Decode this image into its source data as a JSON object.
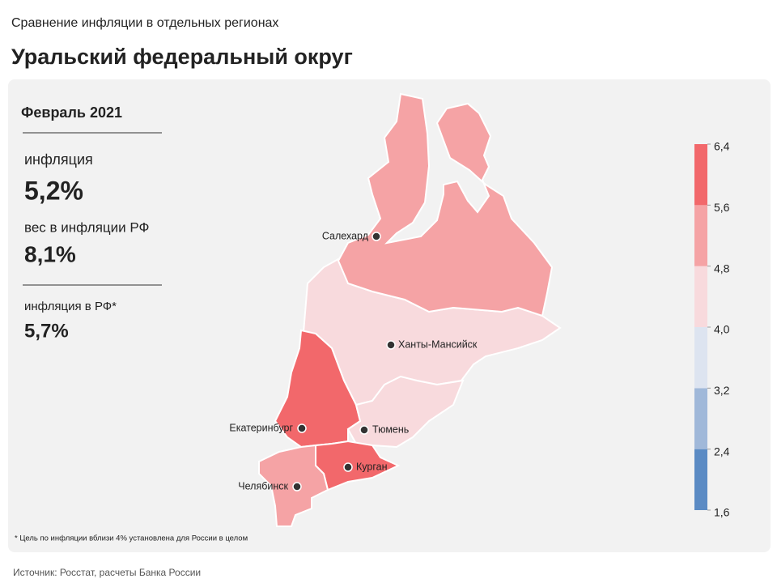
{
  "header": {
    "subtitle": "Сравнение инфляции  в отдельных регионах",
    "title": "Уральский федеральный округ"
  },
  "panel": {
    "period": "Февраль 2021",
    "stats": [
      {
        "label": "инфляция",
        "value": "5,2%"
      },
      {
        "label": "вес в инфляции РФ",
        "value": "8,1%"
      },
      {
        "label": "инфляция  в РФ*",
        "value": "5,7%"
      }
    ]
  },
  "cities": [
    "Салехард",
    "Ханты-Мансийск",
    "Екатеринбург",
    "Тюмень",
    "Курган",
    "Челябинск"
  ],
  "legend": {
    "ticks": [
      {
        "value": 1.6,
        "label": "1,6"
      },
      {
        "value": 2.4,
        "label": "2,4"
      },
      {
        "value": 3.2,
        "label": "3,2"
      },
      {
        "value": 4.0,
        "label": "4,0"
      },
      {
        "value": 4.8,
        "label": "4,8"
      },
      {
        "value": 5.6,
        "label": "5,6"
      },
      {
        "value": 6.4,
        "label": "6,4"
      }
    ],
    "colors": [
      "#5b8bc4",
      "#a0b8d9",
      "#dde4f0",
      "#f8dadd",
      "#f5a3a5",
      "#f2686b"
    ]
  },
  "footnote": "* Цель по инфляции вблизи 4% установлена для России в целом",
  "source": "Источник: Росстат, расчеты Банка России"
}
